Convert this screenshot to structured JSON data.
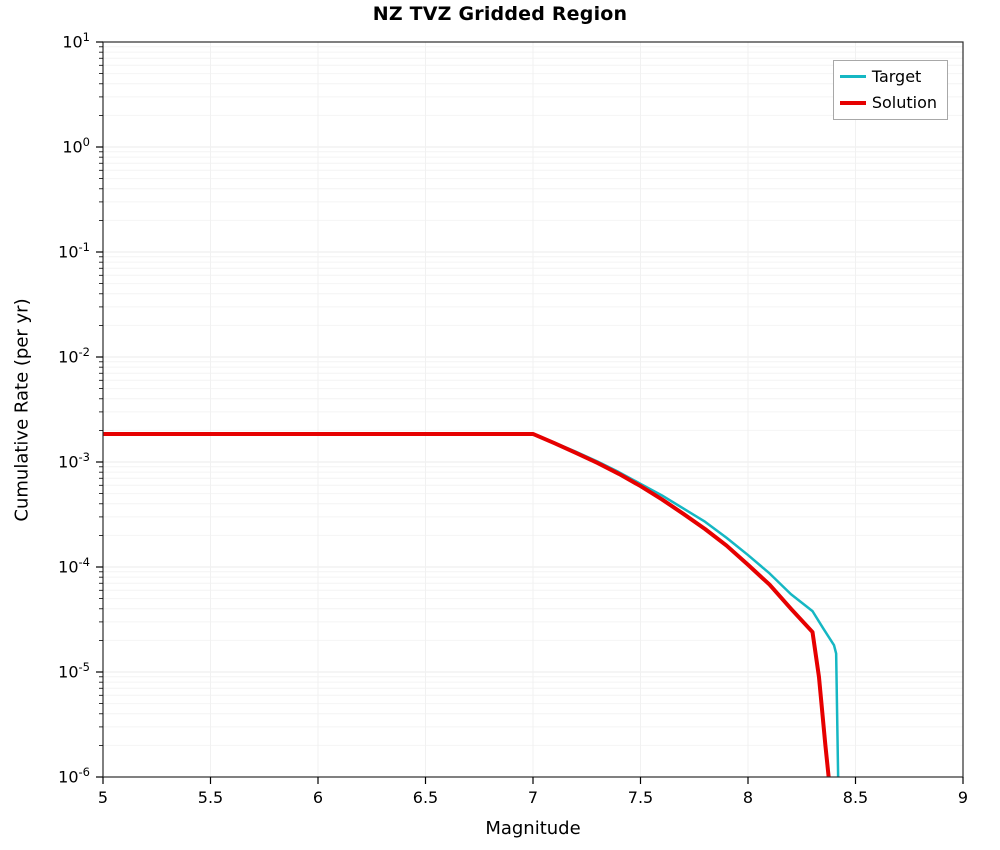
{
  "chart": {
    "title": "NZ TVZ Gridded Region",
    "xlabel": "Magnitude",
    "ylabel": "Cumulative Rate (per yr)"
  },
  "legend": {
    "position": "top-right",
    "entries": [
      {
        "label": "Target",
        "color": "#15b7c3",
        "line_width": 2.5
      },
      {
        "label": "Solution",
        "color": "#e60000",
        "line_width": 4
      }
    ]
  },
  "chart_data": {
    "type": "line",
    "title": "NZ TVZ Gridded Region",
    "xlabel": "Magnitude",
    "ylabel": "Cumulative Rate (per yr)",
    "xscale": "linear",
    "yscale": "log",
    "xlim": [
      5,
      9
    ],
    "ylim": [
      1e-06,
      10
    ],
    "xticks": [
      5,
      5.5,
      6,
      6.5,
      7,
      7.5,
      8,
      8.5,
      9
    ],
    "ytick_exponents": [
      1,
      0,
      -1,
      -2,
      -3,
      -4,
      -5,
      -6
    ],
    "grid": true,
    "legend_position": "top-right",
    "series": [
      {
        "name": "Target",
        "color": "#15b7c3",
        "width": 2.5,
        "x": [
          5.0,
          6.0,
          7.0,
          7.1,
          7.2,
          7.3,
          7.4,
          7.5,
          7.6,
          7.7,
          7.8,
          7.9,
          8.0,
          8.1,
          8.2,
          8.3,
          8.35,
          8.4,
          8.41,
          8.42
        ],
        "y": [
          0.00185,
          0.00185,
          0.00185,
          0.00153,
          0.00125,
          0.00101,
          0.0008,
          0.00062,
          0.00048,
          0.00036,
          0.00027,
          0.00019,
          0.00013,
          8.7e-05,
          5.5e-05,
          3.8e-05,
          2.6e-05,
          1.8e-05,
          1.5e-05,
          8e-07
        ]
      },
      {
        "name": "Solution",
        "color": "#e60000",
        "width": 4,
        "x": [
          5.0,
          6.0,
          7.0,
          7.1,
          7.2,
          7.3,
          7.4,
          7.5,
          7.6,
          7.7,
          7.8,
          7.9,
          8.0,
          8.1,
          8.2,
          8.3,
          8.33,
          8.36,
          8.38
        ],
        "y": [
          0.00185,
          0.00185,
          0.00185,
          0.00151,
          0.00122,
          0.00098,
          0.00077,
          0.00059,
          0.00044,
          0.00032,
          0.00023,
          0.00016,
          0.000105,
          6.8e-05,
          4e-05,
          2.4e-05,
          9e-06,
          2e-06,
          8e-07
        ]
      }
    ]
  }
}
